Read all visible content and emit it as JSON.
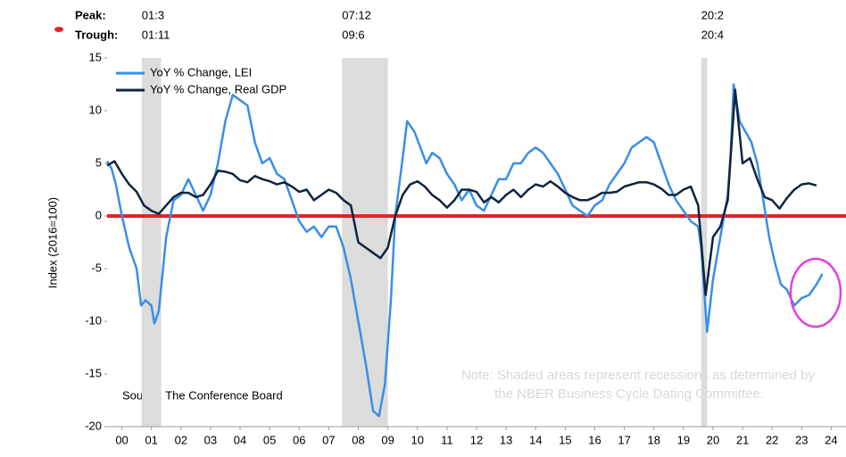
{
  "chart_data": {
    "type": "line",
    "header": {
      "peak_label": "Peak:",
      "trough_label": "Trough:",
      "peaks": [
        "01:3",
        "07:12",
        "20:2"
      ],
      "troughs": [
        "01:11",
        "09:6",
        "20:4"
      ]
    },
    "ylabel": "Index (2016=100)",
    "source": "Source: The Conference Board",
    "note": [
      "Note: Shaded areas represent recessions as determined by",
      "the NBER Business Cycle Dating Committee."
    ],
    "recessions": [
      [
        2001.17,
        2001.83
      ],
      [
        2007.95,
        2009.5
      ],
      [
        2020.1,
        2020.3
      ]
    ],
    "hline": {
      "value": 0,
      "color": "#e8202a"
    },
    "xlim": [
      2000,
      2025
    ],
    "xticks": [
      {
        "value": 2000.5,
        "label": "00"
      },
      {
        "value": 2001.5,
        "label": "01"
      },
      {
        "value": 2002.5,
        "label": "02"
      },
      {
        "value": 2003.5,
        "label": "03"
      },
      {
        "value": 2004.5,
        "label": "04"
      },
      {
        "value": 2005.5,
        "label": "05"
      },
      {
        "value": 2006.5,
        "label": "06"
      },
      {
        "value": 2007.5,
        "label": "07"
      },
      {
        "value": 2008.5,
        "label": "08"
      },
      {
        "value": 2009.5,
        "label": "09"
      },
      {
        "value": 2010.5,
        "label": "10"
      },
      {
        "value": 2011.5,
        "label": "11"
      },
      {
        "value": 2012.5,
        "label": "12"
      },
      {
        "value": 2013.5,
        "label": "13"
      },
      {
        "value": 2014.5,
        "label": "14"
      },
      {
        "value": 2015.5,
        "label": "15"
      },
      {
        "value": 2016.5,
        "label": "16"
      },
      {
        "value": 2017.5,
        "label": "17"
      },
      {
        "value": 2018.5,
        "label": "18"
      },
      {
        "value": 2019.5,
        "label": "19"
      },
      {
        "value": 2020.5,
        "label": "20"
      },
      {
        "value": 2021.5,
        "label": "21"
      },
      {
        "value": 2022.5,
        "label": "22"
      },
      {
        "value": 2023.5,
        "label": "23"
      },
      {
        "value": 2024.5,
        "label": "24"
      }
    ],
    "ylim": [
      -20,
      15
    ],
    "yticks": [
      15,
      10,
      5,
      0,
      -5,
      -10,
      -15,
      -20
    ],
    "grid": false,
    "legend": "upper left",
    "series": [
      {
        "name": "YoY % Change, LEI",
        "color": "#3a8ee6",
        "x": [
          2000.0,
          2000.15,
          2000.3,
          2000.5,
          2000.75,
          2001.0,
          2001.15,
          2001.3,
          2001.5,
          2001.6,
          2001.75,
          2002.0,
          2002.25,
          2002.5,
          2002.75,
          2003.0,
          2003.25,
          2003.5,
          2003.75,
          2004.0,
          2004.25,
          2004.5,
          2004.75,
          2005.0,
          2005.25,
          2005.5,
          2005.75,
          2006.0,
          2006.25,
          2006.5,
          2006.75,
          2007.0,
          2007.25,
          2007.5,
          2007.75,
          2008.0,
          2008.25,
          2008.5,
          2008.75,
          2009.0,
          2009.2,
          2009.4,
          2009.6,
          2009.75,
          2010.0,
          2010.15,
          2010.4,
          2010.6,
          2010.8,
          2011.0,
          2011.25,
          2011.5,
          2011.75,
          2012.0,
          2012.25,
          2012.5,
          2012.75,
          2013.0,
          2013.25,
          2013.5,
          2013.75,
          2014.0,
          2014.25,
          2014.5,
          2014.75,
          2015.0,
          2015.25,
          2015.5,
          2015.75,
          2016.0,
          2016.25,
          2016.5,
          2016.75,
          2017.0,
          2017.25,
          2017.5,
          2017.75,
          2018.0,
          2018.25,
          2018.5,
          2018.75,
          2019.0,
          2019.25,
          2019.5,
          2019.75,
          2020.0,
          2020.1,
          2020.3,
          2020.5,
          2020.75,
          2021.0,
          2021.1,
          2021.2,
          2021.4,
          2021.6,
          2021.8,
          2022.0,
          2022.2,
          2022.4,
          2022.6,
          2022.8,
          2023.0,
          2023.25,
          2023.5,
          2023.75,
          2024.0,
          2024.2
        ],
        "values": [
          5.2,
          4.5,
          3,
          0,
          -3,
          -5,
          -8.5,
          -8,
          -8.5,
          -10.2,
          -9,
          -2,
          1.5,
          2,
          3.5,
          2,
          0.5,
          2,
          5,
          9,
          11.5,
          11,
          10.5,
          7,
          5,
          5.5,
          4,
          3.5,
          1.5,
          -0.5,
          -1.5,
          -1,
          -2,
          -1,
          -1,
          -3,
          -6,
          -10,
          -14,
          -18.5,
          -19,
          -16,
          -8,
          0,
          5.5,
          9,
          8,
          6.5,
          5,
          6,
          5.5,
          4,
          3,
          1.5,
          2.5,
          1,
          0.5,
          2,
          3.5,
          3.5,
          5,
          5,
          6,
          6.5,
          6,
          5,
          4,
          2.5,
          1,
          0.5,
          0,
          1,
          1.5,
          3,
          4,
          5,
          6.5,
          7,
          7.5,
          7,
          5,
          3,
          1.5,
          0.5,
          -0.5,
          -1,
          -3,
          -11,
          -6,
          -2,
          2,
          6,
          12.5,
          9,
          8,
          7,
          5,
          1.5,
          -2,
          -4.5,
          -6.5,
          -7,
          -8.5,
          -7.8,
          -7.5,
          -6.5,
          -5.5
        ]
      },
      {
        "name": "YoY % Change, Real GDP",
        "color": "#10243f",
        "x": [
          2000.0,
          2000.25,
          2000.5,
          2000.75,
          2001.0,
          2001.25,
          2001.5,
          2001.75,
          2002.0,
          2002.25,
          2002.5,
          2002.75,
          2003.0,
          2003.25,
          2003.5,
          2003.75,
          2004.0,
          2004.25,
          2004.5,
          2004.75,
          2005.0,
          2005.25,
          2005.5,
          2005.75,
          2006.0,
          2006.25,
          2006.5,
          2006.75,
          2007.0,
          2007.25,
          2007.5,
          2007.75,
          2008.0,
          2008.25,
          2008.5,
          2008.75,
          2009.0,
          2009.25,
          2009.5,
          2009.75,
          2010.0,
          2010.25,
          2010.5,
          2010.75,
          2011.0,
          2011.25,
          2011.5,
          2011.75,
          2012.0,
          2012.25,
          2012.5,
          2012.75,
          2013.0,
          2013.25,
          2013.5,
          2013.75,
          2014.0,
          2014.25,
          2014.5,
          2014.75,
          2015.0,
          2015.25,
          2015.5,
          2015.75,
          2016.0,
          2016.25,
          2016.5,
          2016.75,
          2017.0,
          2017.25,
          2017.5,
          2017.75,
          2018.0,
          2018.25,
          2018.5,
          2018.75,
          2019.0,
          2019.25,
          2019.5,
          2019.75,
          2020.0,
          2020.25,
          2020.5,
          2020.75,
          2021.0,
          2021.25,
          2021.5,
          2021.75,
          2022.0,
          2022.25,
          2022.5,
          2022.75,
          2023.0,
          2023.25,
          2023.5,
          2023.75,
          2024.0
        ],
        "values": [
          4.8,
          5.2,
          4,
          3,
          2.3,
          1,
          0.5,
          0.2,
          1,
          1.8,
          2.2,
          2.2,
          1.8,
          2,
          3,
          4.3,
          4.2,
          4,
          3.4,
          3.2,
          3.8,
          3.5,
          3.3,
          3,
          3.2,
          2.8,
          2.3,
          2.5,
          1.5,
          2,
          2.5,
          2.2,
          1.5,
          1,
          -2.5,
          -3,
          -3.5,
          -4,
          -3,
          0,
          2,
          3,
          3.3,
          2.8,
          2,
          1.5,
          0.8,
          1.5,
          2.5,
          2.5,
          2.3,
          1.3,
          1.8,
          1.3,
          2,
          2.5,
          1.8,
          2.5,
          3,
          2.8,
          3.3,
          2.8,
          2.2,
          1.8,
          1.5,
          1.5,
          1.8,
          2.2,
          2.2,
          2.3,
          2.8,
          3,
          3.2,
          3.2,
          3,
          2.6,
          2,
          2,
          2.5,
          2.8,
          1,
          -7.5,
          -2,
          -1,
          1.5,
          12,
          5,
          5.5,
          3.5,
          1.8,
          1.5,
          0.7,
          1.7,
          2.5,
          3,
          3.1,
          2.9
        ]
      }
    ]
  }
}
